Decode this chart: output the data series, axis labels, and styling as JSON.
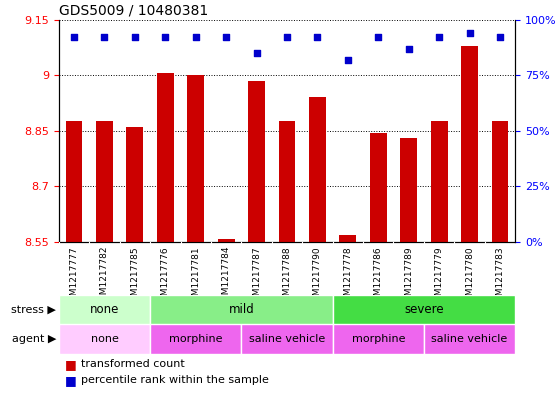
{
  "title": "GDS5009 / 10480381",
  "samples": [
    "GSM1217777",
    "GSM1217782",
    "GSM1217785",
    "GSM1217776",
    "GSM1217781",
    "GSM1217784",
    "GSM1217787",
    "GSM1217788",
    "GSM1217790",
    "GSM1217778",
    "GSM1217786",
    "GSM1217789",
    "GSM1217779",
    "GSM1217780",
    "GSM1217783"
  ],
  "transformed_counts": [
    8.875,
    8.875,
    8.86,
    9.005,
    9.0,
    8.557,
    8.985,
    8.875,
    8.94,
    8.567,
    8.845,
    8.83,
    8.875,
    9.08,
    8.875
  ],
  "percentile_ranks": [
    92,
    92,
    92,
    92,
    92,
    92,
    85,
    92,
    92,
    82,
    92,
    87,
    92,
    94,
    92
  ],
  "ylim_left": [
    8.55,
    9.15
  ],
  "ylim_right": [
    0,
    100
  ],
  "yticks_left": [
    8.55,
    8.7,
    8.85,
    9.0,
    9.15
  ],
  "yticks_right": [
    0,
    25,
    50,
    75,
    100
  ],
  "ytick_labels_left": [
    "8.55",
    "8.7",
    "8.85",
    "9",
    "9.15"
  ],
  "ytick_labels_right": [
    "0%",
    "25%",
    "50%",
    "75%",
    "100%"
  ],
  "bar_color": "#cc0000",
  "dot_color": "#0000cc",
  "stress_groups": [
    {
      "label": "none",
      "start": 0,
      "end": 3,
      "color": "#ccffcc"
    },
    {
      "label": "mild",
      "start": 3,
      "end": 9,
      "color": "#88ee88"
    },
    {
      "label": "severe",
      "start": 9,
      "end": 15,
      "color": "#44dd44"
    }
  ],
  "agent_groups": [
    {
      "label": "none",
      "start": 0,
      "end": 3,
      "color": "#ffccff"
    },
    {
      "label": "morphine",
      "start": 3,
      "end": 6,
      "color": "#ee66ee"
    },
    {
      "label": "saline vehicle",
      "start": 6,
      "end": 9,
      "color": "#ee66ee"
    },
    {
      "label": "morphine",
      "start": 9,
      "end": 12,
      "color": "#ee66ee"
    },
    {
      "label": "saline vehicle",
      "start": 12,
      "end": 15,
      "color": "#ee66ee"
    }
  ],
  "legend_bar_label": "transformed count",
  "legend_dot_label": "percentile rank within the sample",
  "stress_label": "stress",
  "agent_label": "agent",
  "bar_bottom": 8.55,
  "xlabel_area_color": "#cccccc",
  "fig_width": 5.6,
  "fig_height": 3.93,
  "dpi": 100
}
